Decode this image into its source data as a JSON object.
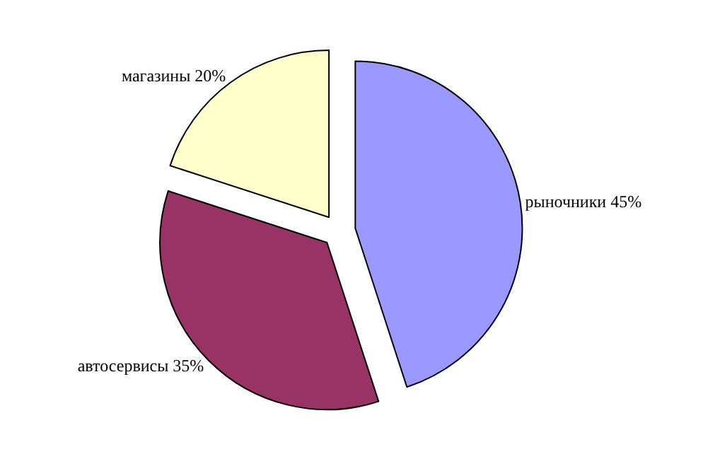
{
  "chart_data": {
    "type": "pie",
    "categories": [
      "рыночники",
      "автосервисы",
      "магазины"
    ],
    "values": [
      45,
      35,
      20
    ],
    "value_labels": [
      "45%",
      "35%",
      "20%"
    ],
    "colors": [
      "#9999ff",
      "#993366",
      "#ffffcc"
    ],
    "legend": false
  }
}
